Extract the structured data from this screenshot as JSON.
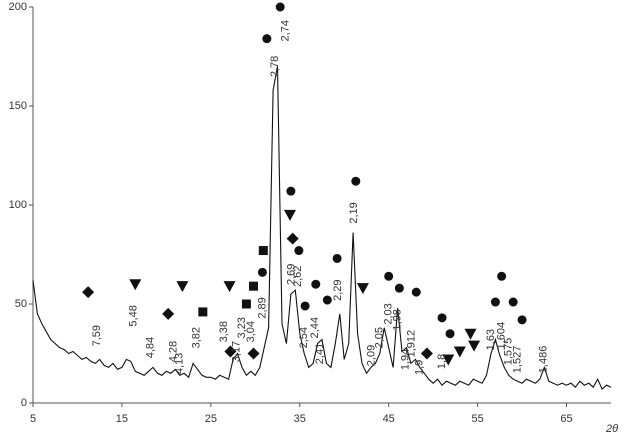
{
  "chart_data": {
    "type": "line",
    "x_label": "2θ",
    "xlim": [
      5,
      70
    ],
    "ylim": [
      0,
      200
    ],
    "xticks": [
      5,
      15,
      25,
      35,
      45,
      55,
      65
    ],
    "yticks": [
      0,
      50,
      100,
      150,
      200
    ],
    "color": "#111111",
    "x": [
      5,
      5.5,
      6,
      6.5,
      7,
      7.5,
      8,
      8.5,
      9,
      9.5,
      10,
      10.5,
      11,
      11.5,
      12,
      12.5,
      13,
      13.5,
      14,
      14.5,
      15,
      15.5,
      16,
      16.5,
      17,
      17.5,
      18,
      18.5,
      19,
      19.5,
      20,
      20.5,
      21,
      21.5,
      22,
      22.5,
      23,
      23.5,
      24,
      24.5,
      25,
      25.5,
      26,
      26.5,
      27,
      27.5,
      28,
      28.5,
      29,
      29.5,
      30,
      30.5,
      31,
      31.5,
      32,
      32.5,
      33,
      33.5,
      34,
      34.5,
      35,
      35.5,
      36,
      36.5,
      37,
      37.5,
      38,
      38.5,
      39,
      39.5,
      40,
      40.5,
      41,
      41.5,
      42,
      42.5,
      43,
      43.5,
      44,
      44.5,
      45,
      45.5,
      46,
      46.5,
      47,
      47.5,
      48,
      48.5,
      49,
      49.5,
      50,
      50.5,
      51,
      51.5,
      52,
      52.5,
      53,
      53.5,
      54,
      54.5,
      55,
      55.5,
      56,
      56.5,
      57,
      57.5,
      58,
      58.5,
      59,
      59.5,
      60,
      60.5,
      61,
      61.5,
      62,
      62.5,
      63,
      63.5,
      64,
      64.5,
      65,
      65.5,
      66,
      66.5,
      67,
      67.5,
      68,
      68.5,
      69,
      69.5,
      70
    ],
    "y": [
      62,
      45,
      40,
      36,
      32,
      30,
      28,
      27,
      25,
      26,
      24,
      22,
      23,
      21,
      20,
      22,
      19,
      18,
      20,
      17,
      18,
      22,
      21,
      16,
      15,
      14,
      16,
      18,
      15,
      14,
      16,
      15,
      17,
      14,
      15,
      13,
      20,
      17,
      14,
      13,
      13,
      12,
      14,
      13,
      12,
      22,
      25,
      18,
      14,
      16,
      14,
      18,
      28,
      38,
      158,
      170,
      40,
      30,
      55,
      57,
      35,
      25,
      18,
      20,
      30,
      32,
      20,
      18,
      30,
      45,
      22,
      30,
      86,
      35,
      20,
      15,
      18,
      20,
      25,
      38,
      28,
      18,
      48,
      26,
      28,
      20,
      22,
      18,
      15,
      12,
      10,
      12,
      9,
      11,
      10,
      9,
      11,
      10,
      9,
      12,
      11,
      10,
      14,
      25,
      32,
      24,
      18,
      14,
      12,
      11,
      10,
      12,
      11,
      10,
      12,
      18,
      11,
      10,
      9,
      10,
      9,
      10,
      8,
      11,
      9,
      10,
      8,
      12,
      7,
      9,
      8
    ],
    "markers": [
      {
        "marker": "circle",
        "x": [
          30.8,
          31.3,
          32.8,
          34.0,
          34.9,
          35.6,
          36.8,
          38.1,
          39.2,
          41.3,
          45.0,
          46.2,
          48.1,
          51.0,
          51.9,
          57.0,
          57.7,
          59.0,
          60.0
        ],
        "y": [
          66,
          184,
          200,
          107,
          77,
          49,
          60,
          52,
          73,
          112,
          64,
          58,
          56,
          43,
          35,
          51,
          64,
          51,
          42
        ]
      },
      {
        "marker": "square",
        "x": [
          24.1,
          29.0,
          29.8,
          30.9
        ],
        "y": [
          46,
          50,
          59,
          77
        ]
      },
      {
        "marker": "triangle",
        "x": [
          16.5,
          21.8,
          27.1,
          33.9,
          42.1,
          51.7,
          53.0,
          54.2,
          54.6
        ],
        "y": [
          60,
          59,
          59,
          95,
          58,
          22,
          26,
          35,
          29
        ]
      },
      {
        "marker": "diamond",
        "x": [
          11.2,
          20.2,
          27.2,
          29.8,
          34.2,
          49.3
        ],
        "y": [
          56,
          45,
          26,
          25,
          83,
          25
        ]
      }
    ],
    "annotations": [
      {
        "text": "7,59",
        "x": 12.2,
        "y": 34
      },
      {
        "text": "5,48",
        "x": 16.3,
        "y": 44
      },
      {
        "text": "4,84",
        "x": 18.2,
        "y": 28
      },
      {
        "text": "4,28",
        "x": 20.8,
        "y": 26
      },
      {
        "text": "4,13",
        "x": 21.5,
        "y": 20
      },
      {
        "text": "3,82",
        "x": 23.4,
        "y": 33
      },
      {
        "text": "3,38",
        "x": 26.5,
        "y": 36
      },
      {
        "text": "3,17",
        "x": 27.9,
        "y": 26
      },
      {
        "text": "3,23",
        "x": 28.5,
        "y": 38
      },
      {
        "text": "3,04",
        "x": 29.5,
        "y": 36
      },
      {
        "text": "2,89",
        "x": 30.8,
        "y": 48
      },
      {
        "text": "2,78",
        "x": 32.2,
        "y": 170
      },
      {
        "text": "2,74",
        "x": 33.4,
        "y": 188
      },
      {
        "text": "2,69",
        "x": 34.1,
        "y": 65
      },
      {
        "text": "2,62",
        "x": 34.8,
        "y": 64
      },
      {
        "text": "2,54",
        "x": 35.5,
        "y": 33
      },
      {
        "text": "2,44",
        "x": 36.7,
        "y": 38
      },
      {
        "text": "2,41",
        "x": 37.3,
        "y": 25
      },
      {
        "text": "2,29",
        "x": 39.3,
        "y": 57
      },
      {
        "text": "2,19",
        "x": 41.1,
        "y": 96
      },
      {
        "text": "2,09",
        "x": 43.1,
        "y": 24
      },
      {
        "text": "2,05",
        "x": 44.0,
        "y": 33
      },
      {
        "text": "2,03",
        "x": 45.0,
        "y": 45
      },
      {
        "text": "1,98",
        "x": 46.0,
        "y": 42
      },
      {
        "text": "1,94",
        "x": 46.9,
        "y": 22
      },
      {
        "text": "1,912",
        "x": 47.6,
        "y": 30
      },
      {
        "text": "1,9",
        "x": 48.5,
        "y": 18
      },
      {
        "text": "1,8",
        "x": 51.0,
        "y": 21
      },
      {
        "text": "1,63",
        "x": 56.5,
        "y": 32
      },
      {
        "text": "1,604",
        "x": 57.7,
        "y": 34
      },
      {
        "text": "1,575",
        "x": 58.5,
        "y": 26
      },
      {
        "text": "1,527",
        "x": 59.5,
        "y": 22
      },
      {
        "text": "1,486",
        "x": 62.4,
        "y": 22
      }
    ]
  }
}
